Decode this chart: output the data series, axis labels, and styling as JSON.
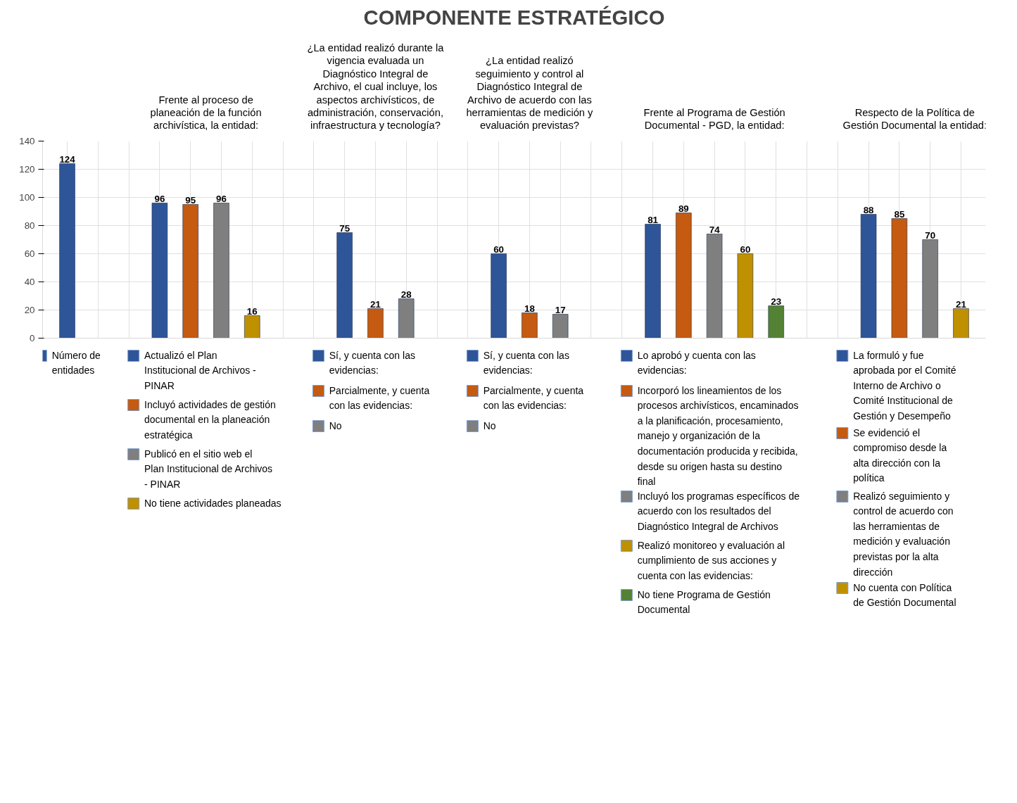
{
  "chart_data": {
    "type": "bar",
    "title": "COMPONENTE ESTRATÉGICO",
    "annotations": [
      "Frente al proceso de planeación de la función archivística, la entidad:",
      "¿La entidad realizó durante la vigencia evaluada un Diagnóstico Integral de Archivo, el cual incluye, los aspectos archivísticos, de administración, conservación, infraestructura y tecnología?",
      "¿La entidad realizó seguimiento y control al Diagnóstico Integral de Archivo de acuerdo con las herramientas de medición y evaluación previstas?",
      "Frente al Programa de Gestión Documental - PGD, la entidad:",
      "Respecto de la Política de Gestión Documental la entidad:"
    ],
    "categories": [
      null,
      null,
      null,
      null,
      null,
      null,
      null,
      null,
      null,
      null,
      null,
      null,
      null,
      null,
      null,
      null,
      null,
      null,
      null,
      null,
      null,
      null,
      null,
      null,
      null,
      null,
      null,
      null,
      null,
      null
    ],
    "series": [
      {
        "name": "Número de entidades",
        "color": "#2e5597",
        "values": [
          124,
          null,
          null,
          null,
          null,
          null,
          null,
          null,
          null,
          null,
          null,
          null,
          null,
          null,
          null,
          null,
          null,
          null,
          null,
          null,
          null,
          null,
          null,
          null,
          null,
          null,
          null,
          null,
          null,
          null
        ]
      },
      {
        "name": "Actualizó el Plan Institucional de Archivos - PINAR",
        "color": "#2e5597",
        "values": [
          null,
          null,
          null,
          96,
          null,
          null,
          null,
          null,
          null,
          null,
          null,
          null,
          null,
          null,
          null,
          null,
          null,
          null,
          null,
          null,
          null,
          null,
          null,
          null,
          null,
          null,
          null,
          null,
          null,
          null
        ]
      },
      {
        "name": "Incluyó actividades de gestión documental en la planeación estratégica",
        "color": "#c55a11",
        "values": [
          null,
          null,
          null,
          null,
          95,
          null,
          null,
          null,
          null,
          null,
          null,
          null,
          null,
          null,
          null,
          null,
          null,
          null,
          null,
          null,
          null,
          null,
          null,
          null,
          null,
          null,
          null,
          null,
          null,
          null
        ]
      },
      {
        "name": "Publicó en el sitio web el Plan Institucional de Archivos - PINAR",
        "color": "#7f7f7f",
        "values": [
          null,
          null,
          null,
          null,
          null,
          96,
          null,
          null,
          null,
          null,
          null,
          null,
          null,
          null,
          null,
          null,
          null,
          null,
          null,
          null,
          null,
          null,
          null,
          null,
          null,
          null,
          null,
          null,
          null,
          null
        ]
      },
      {
        "name": "No tiene actividades planeadas",
        "color": "#bf9000",
        "values": [
          null,
          null,
          null,
          null,
          null,
          null,
          16,
          null,
          null,
          null,
          null,
          null,
          null,
          null,
          null,
          null,
          null,
          null,
          null,
          null,
          null,
          null,
          null,
          null,
          null,
          null,
          null,
          null,
          null,
          null
        ]
      },
      {
        "name": "Sí, y cuenta con las evidencias:",
        "color": "#2e5597",
        "values": [
          null,
          null,
          null,
          null,
          null,
          null,
          null,
          null,
          null,
          75,
          null,
          null,
          null,
          null,
          null,
          null,
          null,
          null,
          null,
          null,
          null,
          null,
          null,
          null,
          null,
          null,
          null,
          null,
          null,
          null
        ]
      },
      {
        "name": "Parcialmente, y cuenta con las evidencias:",
        "color": "#c55a11",
        "values": [
          null,
          null,
          null,
          null,
          null,
          null,
          null,
          null,
          null,
          null,
          21,
          null,
          null,
          null,
          null,
          null,
          null,
          null,
          null,
          null,
          null,
          null,
          null,
          null,
          null,
          null,
          null,
          null,
          null,
          null
        ]
      },
      {
        "name": "No",
        "color": "#7f7f7f",
        "values": [
          null,
          null,
          null,
          null,
          null,
          null,
          null,
          null,
          null,
          null,
          null,
          28,
          null,
          null,
          null,
          null,
          null,
          null,
          null,
          null,
          null,
          null,
          null,
          null,
          null,
          null,
          null,
          null,
          null,
          null
        ]
      },
      {
        "name": "Sí, y cuenta con las evidencias:",
        "color": "#2e5597",
        "values": [
          null,
          null,
          null,
          null,
          null,
          null,
          null,
          null,
          null,
          null,
          null,
          null,
          null,
          null,
          60,
          null,
          null,
          null,
          null,
          null,
          null,
          null,
          null,
          null,
          null,
          null,
          null,
          null,
          null,
          null
        ]
      },
      {
        "name": "Parcialmente, y cuenta con las evidencias:",
        "color": "#c55a11",
        "values": [
          null,
          null,
          null,
          null,
          null,
          null,
          null,
          null,
          null,
          null,
          null,
          null,
          null,
          null,
          null,
          18,
          null,
          null,
          null,
          null,
          null,
          null,
          null,
          null,
          null,
          null,
          null,
          null,
          null,
          null
        ]
      },
      {
        "name": "No",
        "color": "#7f7f7f",
        "values": [
          null,
          null,
          null,
          null,
          null,
          null,
          null,
          null,
          null,
          null,
          null,
          null,
          null,
          null,
          null,
          null,
          17,
          null,
          null,
          null,
          null,
          null,
          null,
          null,
          null,
          null,
          null,
          null,
          null,
          null
        ]
      },
      {
        "name": "Lo aprobó y cuenta con las evidencias:",
        "color": "#2e5597",
        "values": [
          null,
          null,
          null,
          null,
          null,
          null,
          null,
          null,
          null,
          null,
          null,
          null,
          null,
          null,
          null,
          null,
          null,
          null,
          null,
          81,
          null,
          null,
          null,
          null,
          null,
          null,
          null,
          null,
          null,
          null
        ]
      },
      {
        "name": "Incorporó los lineamientos de los procesos archivísticos, encaminados a la planificación, procesamiento, manejo y organización de la documentación producida y recibida, desde su origen hasta su destino final",
        "color": "#c55a11",
        "values": [
          null,
          null,
          null,
          null,
          null,
          null,
          null,
          null,
          null,
          null,
          null,
          null,
          null,
          null,
          null,
          null,
          null,
          null,
          null,
          null,
          89,
          null,
          null,
          null,
          null,
          null,
          null,
          null,
          null,
          null
        ]
      },
      {
        "name": "Incluyó los programas específicos de acuerdo con los resultados del Diagnóstico Integral de Archivos",
        "color": "#7f7f7f",
        "values": [
          null,
          null,
          null,
          null,
          null,
          null,
          null,
          null,
          null,
          null,
          null,
          null,
          null,
          null,
          null,
          null,
          null,
          null,
          null,
          null,
          null,
          74,
          null,
          null,
          null,
          null,
          null,
          null,
          null,
          null
        ]
      },
      {
        "name": "Realizó monitoreo y evaluación al cumplimiento de sus acciones y cuenta con las evidencias:",
        "color": "#bf9000",
        "values": [
          null,
          null,
          null,
          null,
          null,
          null,
          null,
          null,
          null,
          null,
          null,
          null,
          null,
          null,
          null,
          null,
          null,
          null,
          null,
          null,
          null,
          null,
          60,
          null,
          null,
          null,
          null,
          null,
          null,
          null
        ]
      },
      {
        "name": "No tiene Programa de Gestión Documental",
        "color": "#548235",
        "values": [
          null,
          null,
          null,
          null,
          null,
          null,
          null,
          null,
          null,
          null,
          null,
          null,
          null,
          null,
          null,
          null,
          null,
          null,
          null,
          null,
          null,
          null,
          null,
          23,
          null,
          null,
          null,
          null,
          null,
          null
        ]
      },
      {
        "name": "La formuló y fue aprobada por el Comité Interno de Archivo o Comité Institucional de Gestión y Desempeño",
        "color": "#2e5597",
        "values": [
          null,
          null,
          null,
          null,
          null,
          null,
          null,
          null,
          null,
          null,
          null,
          null,
          null,
          null,
          null,
          null,
          null,
          null,
          null,
          null,
          null,
          null,
          null,
          null,
          null,
          null,
          88,
          null,
          null,
          null
        ]
      },
      {
        "name": "Se evidenció el compromiso desde la alta dirección con la política",
        "color": "#c55a11",
        "values": [
          null,
          null,
          null,
          null,
          null,
          null,
          null,
          null,
          null,
          null,
          null,
          null,
          null,
          null,
          null,
          null,
          null,
          null,
          null,
          null,
          null,
          null,
          null,
          null,
          null,
          null,
          null,
          85,
          null,
          null
        ]
      },
      {
        "name": "Realizó seguimiento y control de acuerdo con las herramientas de medición y evaluación previstas por la alta dirección",
        "color": "#7f7f7f",
        "values": [
          null,
          null,
          null,
          null,
          null,
          null,
          null,
          null,
          null,
          null,
          null,
          null,
          null,
          null,
          null,
          null,
          null,
          null,
          null,
          null,
          null,
          null,
          null,
          null,
          null,
          null,
          null,
          null,
          70,
          null
        ]
      },
      {
        "name": "No cuenta con Política de Gestión Documental",
        "color": "#bf9000",
        "values": [
          null,
          null,
          null,
          null,
          null,
          null,
          null,
          null,
          null,
          null,
          null,
          null,
          null,
          null,
          null,
          null,
          null,
          null,
          null,
          null,
          null,
          null,
          null,
          null,
          null,
          null,
          null,
          null,
          null,
          21
        ]
      }
    ],
    "ylim": [
      0,
      140
    ],
    "yticks": [
      0,
      20,
      40,
      60,
      80,
      100,
      120,
      140
    ],
    "grid": true,
    "tick_labels": "y",
    "data_labels": true,
    "legend": "bottom"
  }
}
